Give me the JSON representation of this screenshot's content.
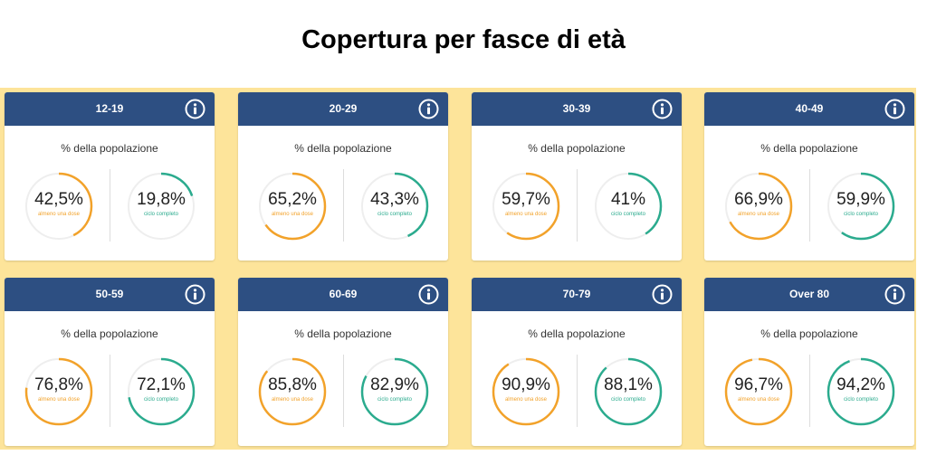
{
  "title": "Copertura per fasce di età",
  "colors": {
    "background": "#fde49a",
    "header": "#2d4f82",
    "first_dose": "#f2a22a",
    "full_cycle": "#2bab8e",
    "track": "#eeeeee"
  },
  "labels": {
    "subtitle": "% della popolazione",
    "first_dose": "almeno una dose",
    "full_cycle": "ciclo completo"
  },
  "chart_data": {
    "type": "gauge",
    "title": "Copertura per fasce di età",
    "unit": "%",
    "series": [
      {
        "name": "almeno una dose",
        "values": [
          42.5,
          65.2,
          59.7,
          66.9,
          76.8,
          85.8,
          90.9,
          96.7
        ]
      },
      {
        "name": "ciclo completo",
        "values": [
          19.8,
          43.3,
          41,
          59.9,
          72.1,
          82.9,
          88.1,
          94.2
        ]
      }
    ],
    "categories": [
      "12-19",
      "20-29",
      "30-39",
      "40-49",
      "50-59",
      "60-69",
      "70-79",
      "Over 80"
    ]
  },
  "cards": [
    {
      "age": "12-19",
      "first": "42,5%",
      "full": "19,8%"
    },
    {
      "age": "20-29",
      "first": "65,2%",
      "full": "43,3%"
    },
    {
      "age": "30-39",
      "first": "59,7%",
      "full": "41%"
    },
    {
      "age": "40-49",
      "first": "66,9%",
      "full": "59,9%"
    },
    {
      "age": "50-59",
      "first": "76,8%",
      "full": "72,1%"
    },
    {
      "age": "60-69",
      "first": "85,8%",
      "full": "82,9%"
    },
    {
      "age": "70-79",
      "first": "90,9%",
      "full": "88,1%"
    },
    {
      "age": "Over 80",
      "first": "96,7%",
      "full": "94,2%"
    }
  ],
  "icons": {
    "info": "info-icon"
  }
}
